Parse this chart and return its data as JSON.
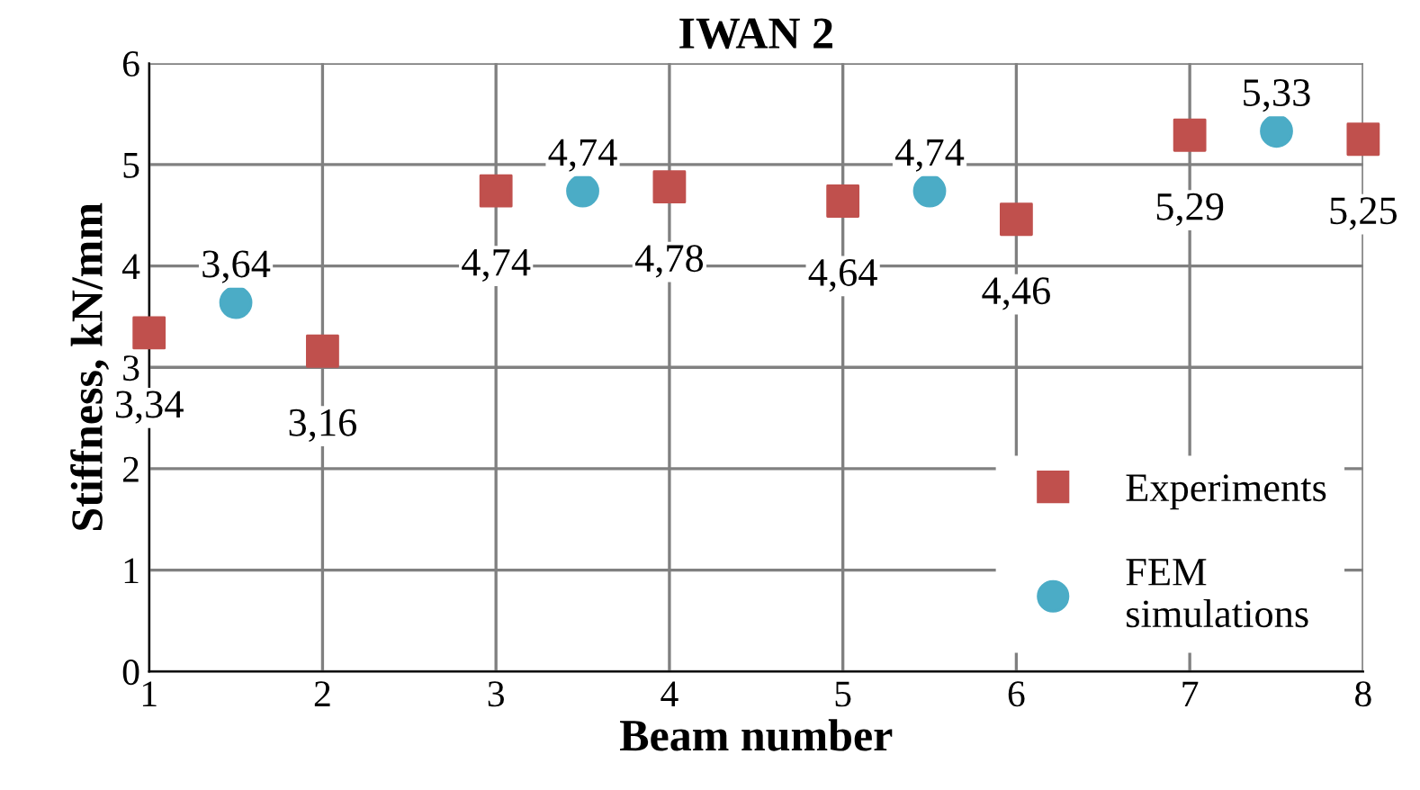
{
  "chart_data": {
    "type": "scatter",
    "title": "IWAN 2",
    "xlabel": "Beam number",
    "ylabel": "Stiffness, kN/mm",
    "xlim": [
      1,
      8
    ],
    "xticks": [
      1,
      2,
      3,
      4,
      5,
      6,
      7,
      8
    ],
    "ylim": [
      0,
      6
    ],
    "yticks": [
      0,
      1,
      2,
      3,
      4,
      5,
      6
    ],
    "grid": true,
    "legend": "bottom right",
    "series": [
      {
        "name": "Experiments",
        "color": "#c0504d",
        "marker": "square",
        "x": [
          1,
          2,
          3,
          4,
          5,
          6,
          7,
          8
        ],
        "values": [
          3.34,
          3.16,
          4.74,
          4.78,
          4.64,
          4.46,
          5.29,
          5.25
        ],
        "value_labels": [
          "3,34",
          "3,16",
          "4,74",
          "4,78",
          "4,64",
          "4,46",
          "5,29",
          "5,25"
        ]
      },
      {
        "name": "FEM\nsimulations",
        "color": "#4bacc6",
        "marker": "circle",
        "x": [
          1.5,
          3.5,
          5.5,
          7.5
        ],
        "values": [
          3.64,
          4.74,
          4.74,
          5.33
        ],
        "value_labels": [
          "3,64",
          "4,74",
          "4,74",
          "5,33"
        ]
      }
    ]
  }
}
